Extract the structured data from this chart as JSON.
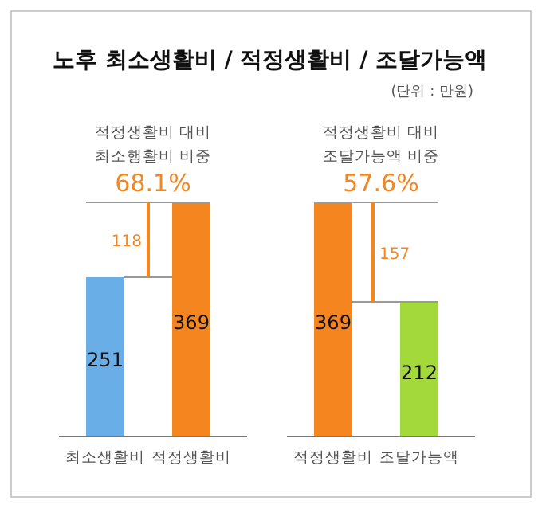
{
  "chart_data": [
    {
      "type": "bar",
      "title": "노후 최소생활비 / 적정생활비 / 조달가능액",
      "categories": [
        "최소생활비",
        "적정생활비"
      ],
      "values": [
        251,
        369
      ],
      "colors": [
        "#6aaee8",
        "#f5861f"
      ],
      "data_labels": true,
      "annotations": [
        "적정생활비 대비",
        "최소행활비 비중",
        "68.1%",
        "118"
      ]
    },
    {
      "type": "bar",
      "subtitle": "(단위 : 만원)",
      "categories": [
        "적정생활비",
        "조달가능액"
      ],
      "values": [
        369,
        212
      ],
      "colors": [
        "#f5861f",
        "#a3d93a"
      ],
      "data_labels": true,
      "annotations": [
        "적정생활비 대비",
        "조달가능액 비중",
        "57.6%",
        "157"
      ]
    }
  ]
}
